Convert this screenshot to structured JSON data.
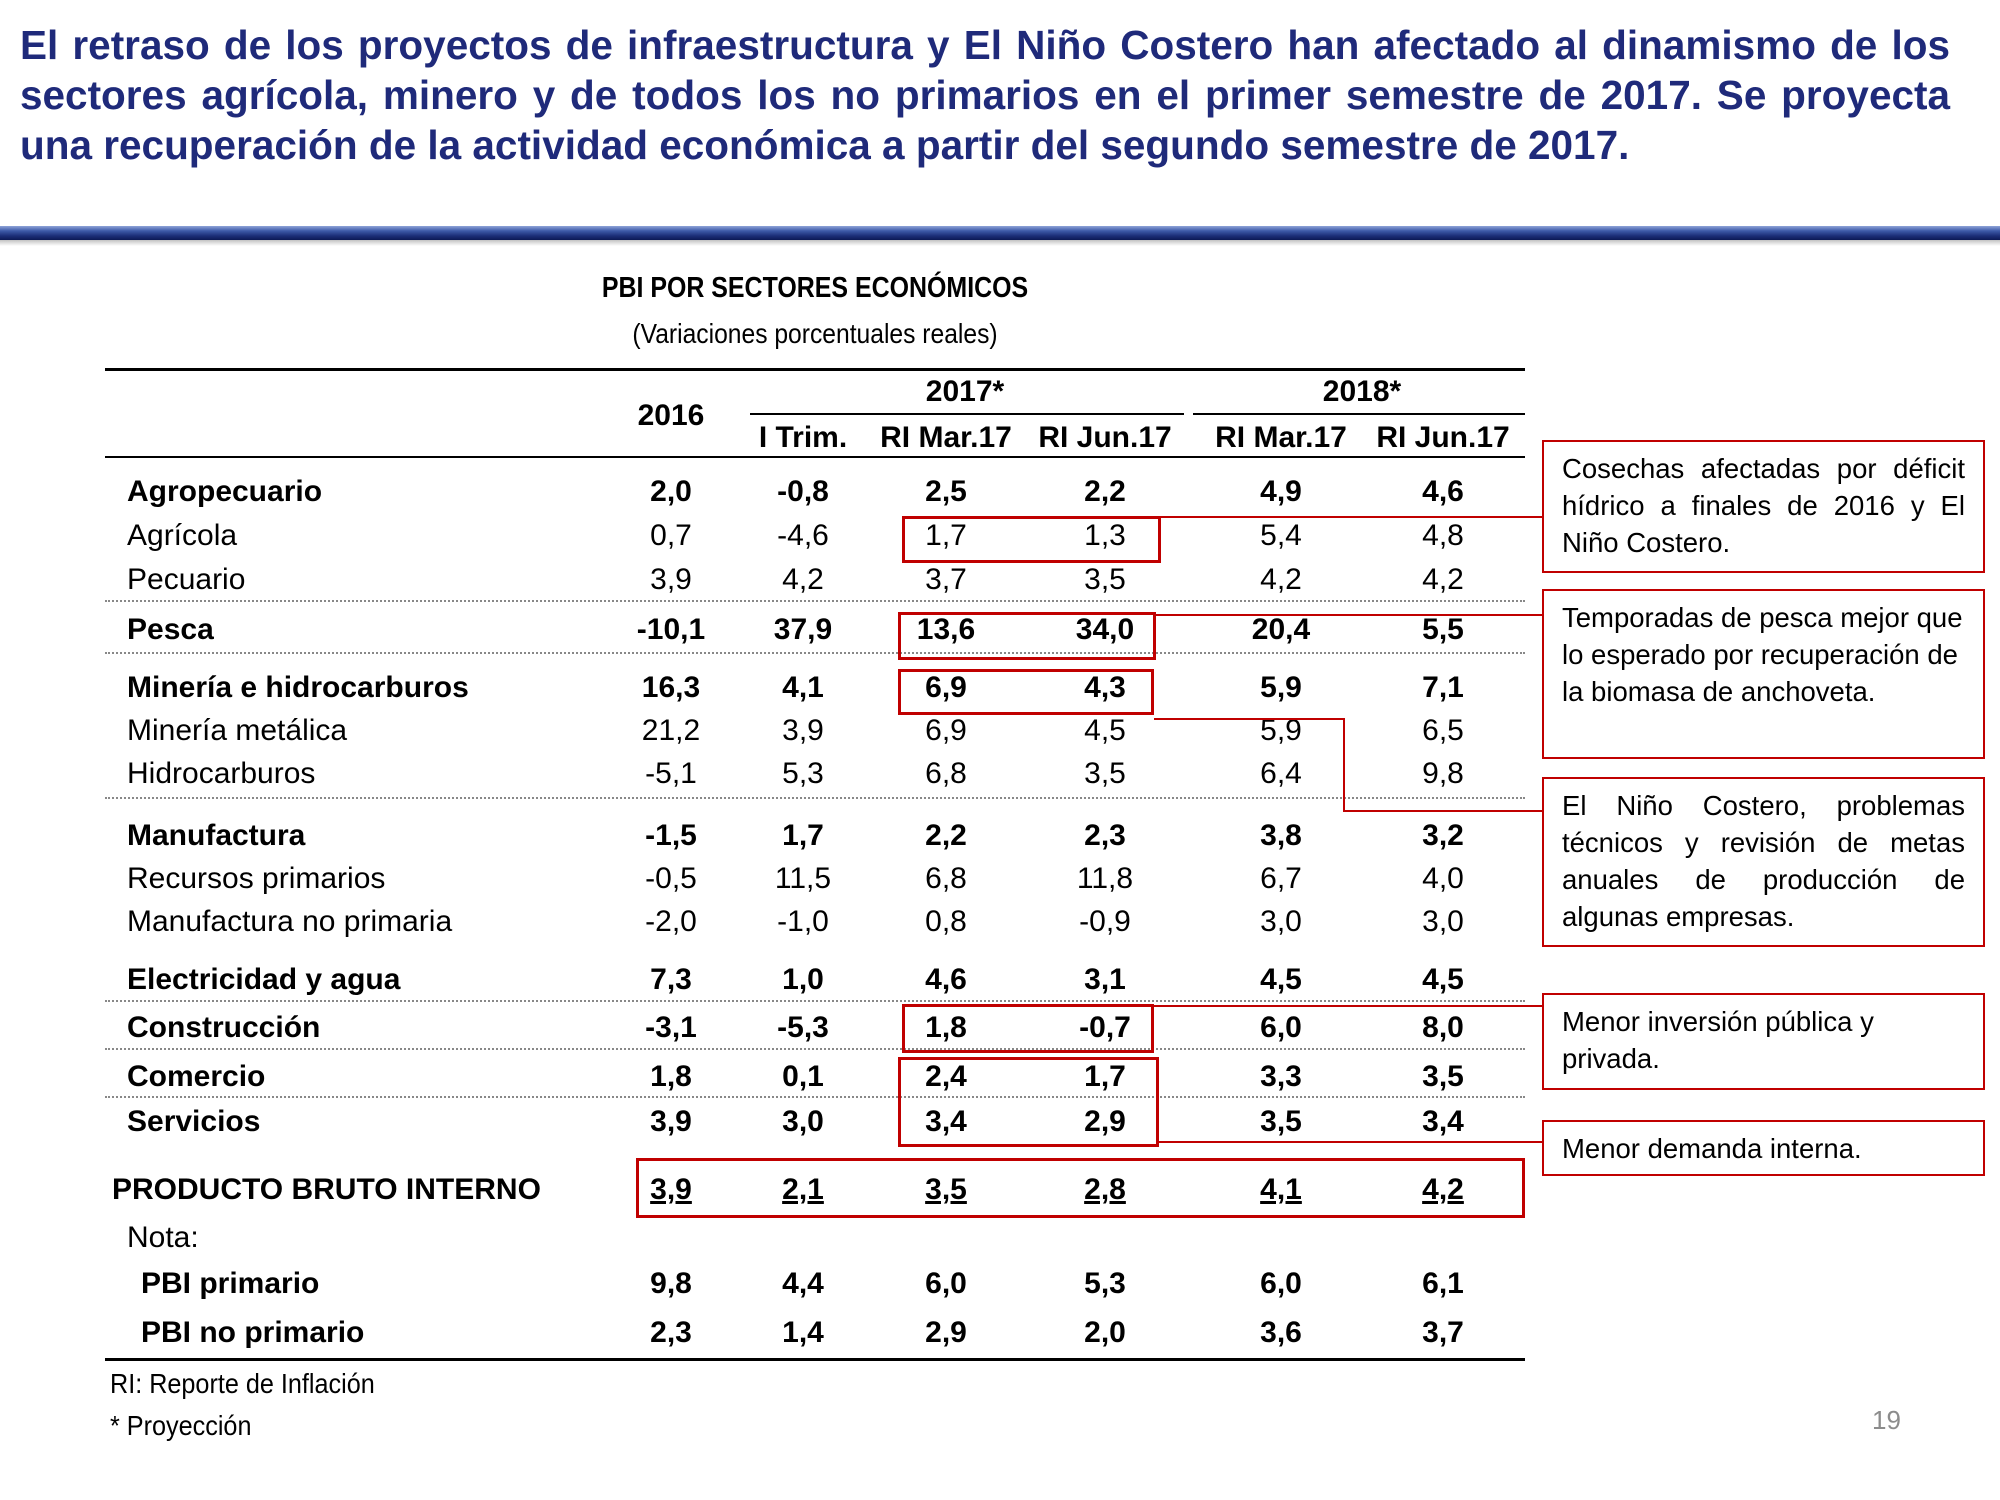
{
  "headline": "El retraso de los proyectos de infraestructura y El Niño Costero han afectado al dinamismo de los sectores agrícola, minero y de todos los no primarios en el primer semestre de 2017. Se proyecta una recuperación de la actividad económica a partir del segundo semestre de 2017.",
  "table": {
    "title": "PBI POR SECTORES ECONÓMICOS",
    "subtitle": "(Variaciones porcentuales reales)",
    "header": {
      "col_2016": "2016",
      "group_2017": "2017*",
      "group_2018": "2018*",
      "sub": [
        "I Trim.",
        "RI Mar.17",
        "RI Jun.17",
        "RI Mar.17",
        "RI Jun.17"
      ]
    },
    "rows": [
      {
        "label": "Agropecuario",
        "values": [
          "2,0",
          "-0,8",
          "2,5",
          "2,2",
          "4,9",
          "4,6"
        ]
      },
      {
        "label": "Agrícola",
        "values": [
          "0,7",
          "-4,6",
          "1,7",
          "1,3",
          "5,4",
          "4,8"
        ]
      },
      {
        "label": "Pecuario",
        "values": [
          "3,9",
          "4,2",
          "3,7",
          "3,5",
          "4,2",
          "4,2"
        ]
      },
      {
        "label": "Pesca",
        "values": [
          "-10,1",
          "37,9",
          "13,6",
          "34,0",
          "20,4",
          "5,5"
        ]
      },
      {
        "label": "Minería e hidrocarburos",
        "values": [
          "16,3",
          "4,1",
          "6,9",
          "4,3",
          "5,9",
          "7,1"
        ]
      },
      {
        "label": "Minería metálica",
        "values": [
          "21,2",
          "3,9",
          "6,9",
          "4,5",
          "5,9",
          "6,5"
        ]
      },
      {
        "label": "Hidrocarburos",
        "values": [
          "-5,1",
          "5,3",
          "6,8",
          "3,5",
          "6,4",
          "9,8"
        ]
      },
      {
        "label": "Manufactura",
        "values": [
          "-1,5",
          "1,7",
          "2,2",
          "2,3",
          "3,8",
          "3,2"
        ]
      },
      {
        "label": "Recursos primarios",
        "values": [
          "-0,5",
          "11,5",
          "6,8",
          "11,8",
          "6,7",
          "4,0"
        ]
      },
      {
        "label": "Manufactura no primaria",
        "values": [
          "-2,0",
          "-1,0",
          "0,8",
          "-0,9",
          "3,0",
          "3,0"
        ]
      },
      {
        "label": "Electricidad y agua",
        "values": [
          "7,3",
          "1,0",
          "4,6",
          "3,1",
          "4,5",
          "4,5"
        ]
      },
      {
        "label": "Construcción",
        "values": [
          "-3,1",
          "-5,3",
          "1,8",
          "-0,7",
          "6,0",
          "8,0"
        ]
      },
      {
        "label": "Comercio",
        "values": [
          "1,8",
          "0,1",
          "2,4",
          "1,7",
          "3,3",
          "3,5"
        ]
      },
      {
        "label": "Servicios",
        "values": [
          "3,9",
          "3,0",
          "3,4",
          "2,9",
          "3,5",
          "3,4"
        ]
      },
      {
        "label": "PRODUCTO BRUTO INTERNO",
        "values": [
          "3,9",
          "2,1",
          "3,5",
          "2,8",
          "4,1",
          "4,2"
        ]
      },
      {
        "label": "Nota:",
        "values": []
      },
      {
        "label": "PBI primario",
        "values": [
          "9,8",
          "4,4",
          "6,0",
          "5,3",
          "6,0",
          "6,1"
        ]
      },
      {
        "label": "PBI no primario",
        "values": [
          "2,3",
          "1,4",
          "2,9",
          "2,0",
          "3,6",
          "3,7"
        ]
      }
    ]
  },
  "callouts": [
    "Cosechas afectadas por déficit hídrico a finales de 2016 y El Niño Costero.",
    "Temporadas de pesca mejor que lo esperado por recuperación de la biomasa de anchoveta.",
    "El Niño Costero, problemas técnicos y revisión de metas anuales de producción de algunas empresas.",
    "Menor inversión pública y privada.",
    "Menor demanda interna."
  ],
  "footnotes": [
    "RI: Reporte de Inflación",
    "* Proyección"
  ],
  "page_number": "19",
  "colors": {
    "headline": "#1f2a7a",
    "highlight": "#c00000",
    "bar": "#1c2f78"
  }
}
